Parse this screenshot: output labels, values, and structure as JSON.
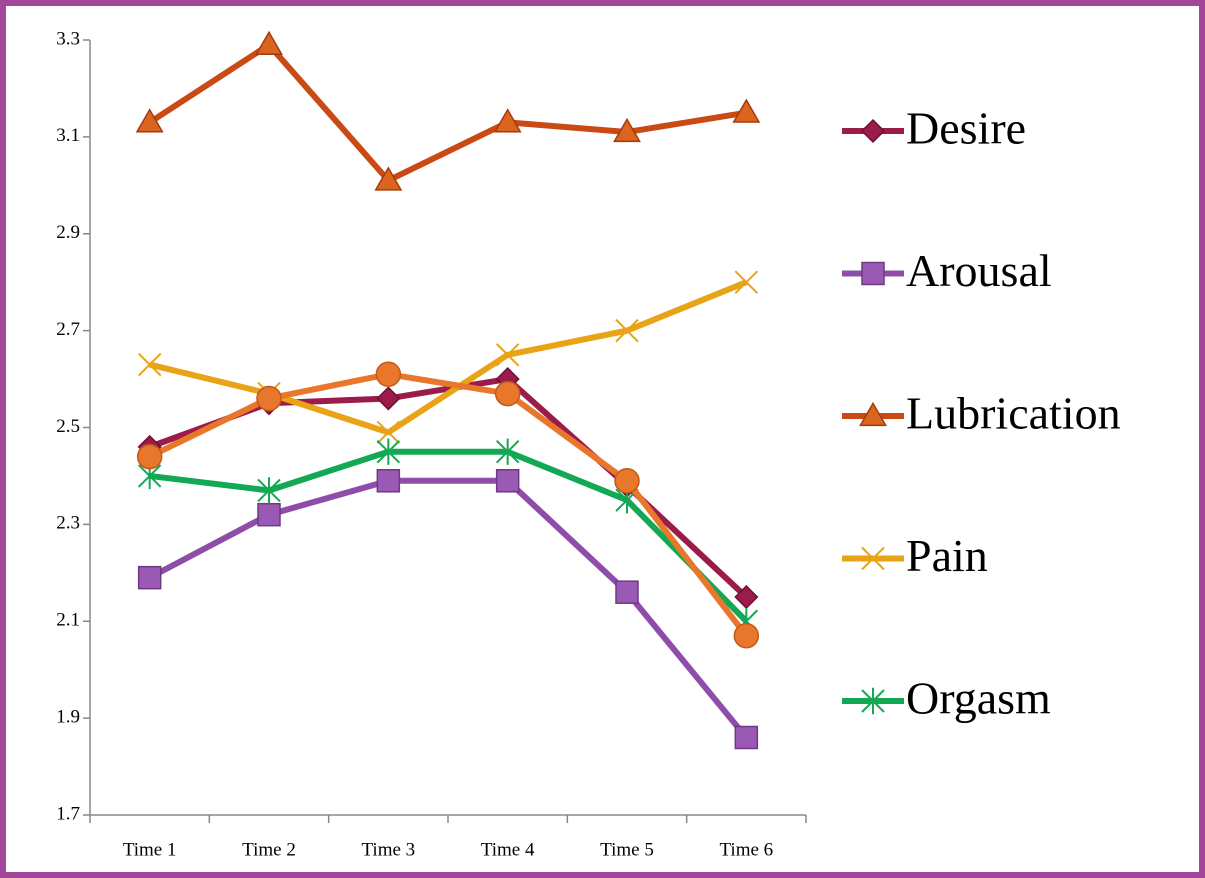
{
  "chart_data": {
    "type": "line",
    "categories": [
      "Time 1",
      "Time 2",
      "Time 3",
      "Time 4",
      "Time 5",
      "Time 6"
    ],
    "series": [
      {
        "name": "Desire",
        "color": "#9b1b4a",
        "marker": "diamond",
        "values": [
          2.46,
          2.55,
          2.56,
          2.6,
          2.38,
          2.15
        ]
      },
      {
        "name": "Arousal",
        "color": "#8e4da8",
        "marker": "square",
        "values": [
          2.19,
          2.32,
          2.39,
          2.39,
          2.16,
          1.86
        ]
      },
      {
        "name": "Lubrication",
        "color": "#c94a14",
        "marker": "triangle",
        "values": [
          3.13,
          3.29,
          3.01,
          3.13,
          3.11,
          3.15
        ]
      },
      {
        "name": "Pain",
        "color": "#e8a317",
        "marker": "x",
        "values": [
          2.63,
          2.57,
          2.49,
          2.65,
          2.7,
          2.8
        ]
      },
      {
        "name": "Orgasm",
        "color": "#13a853",
        "marker": "star",
        "values": [
          2.4,
          2.37,
          2.45,
          2.45,
          2.35,
          2.1
        ]
      },
      {
        "color": "#e8762b",
        "marker": "circle",
        "values": [
          2.44,
          2.56,
          2.61,
          2.57,
          2.39,
          2.07
        ]
      }
    ],
    "ylim": [
      1.7,
      3.3
    ],
    "yticks": [
      {
        "value": 1.7,
        "label": "1.7"
      },
      {
        "value": 1.9,
        "label": "1.9"
      },
      {
        "value": 2.1,
        "label": "2.1"
      },
      {
        "value": 2.3,
        "label": "2.3"
      },
      {
        "value": 2.5,
        "label": "2.5"
      },
      {
        "value": 2.7,
        "label": "2.7"
      },
      {
        "value": 2.9,
        "label": "2.9"
      },
      {
        "value": 3.1,
        "label": "3.1"
      },
      {
        "value": 3.3,
        "label": "3.3"
      }
    ],
    "grid": false,
    "legend": "right"
  }
}
